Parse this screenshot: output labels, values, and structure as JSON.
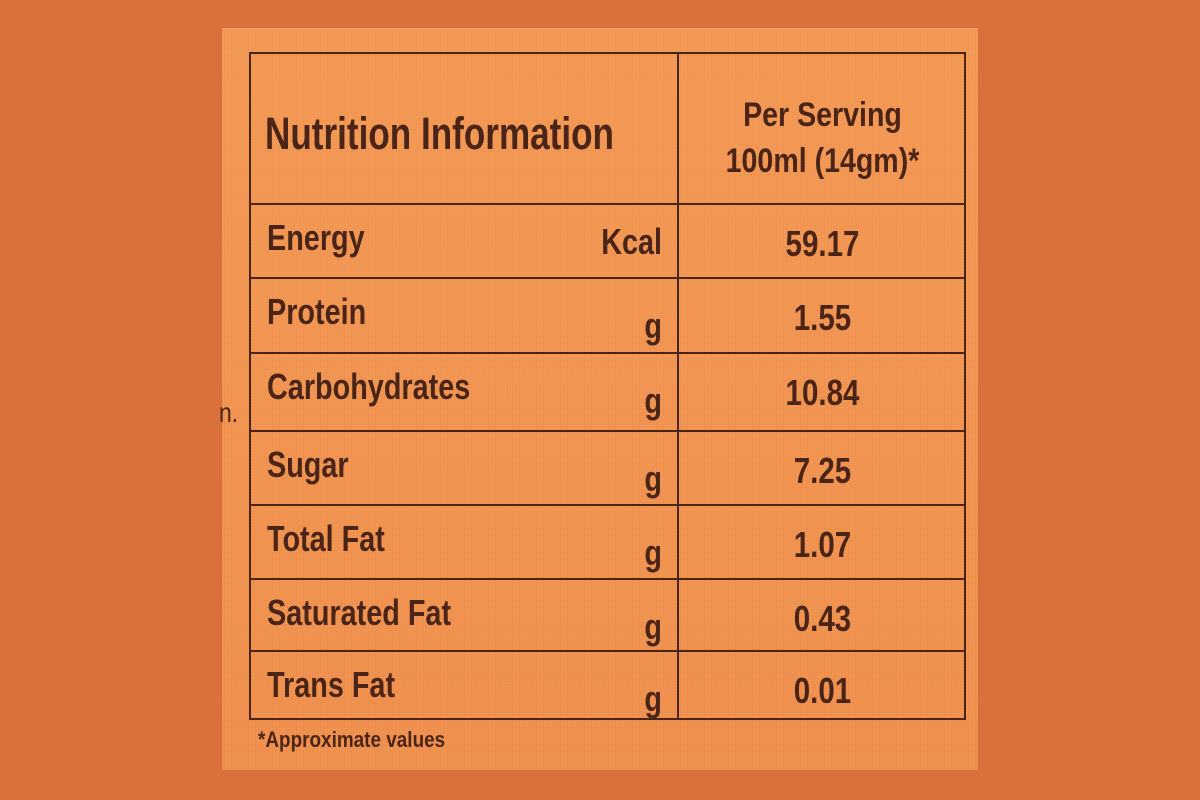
{
  "left_edge_text": "n.",
  "table": {
    "title": "Nutrition Information",
    "serving_line1": "Per Serving",
    "serving_line2": "100ml (14gm)*",
    "rows": [
      {
        "name": "Energy",
        "unit": "Kcal",
        "value": "59.17"
      },
      {
        "name": "Protein",
        "unit": "g",
        "value": "1.55"
      },
      {
        "name": "Carbohydrates",
        "unit": "g",
        "value": "10.84"
      },
      {
        "name": "Sugar",
        "unit": "g",
        "value": "7.25"
      },
      {
        "name": "Total Fat",
        "unit": "g",
        "value": "1.07"
      },
      {
        "name": "Saturated Fat",
        "unit": "g",
        "value": "0.43"
      },
      {
        "name": "Trans Fat",
        "unit": "g",
        "value": "0.01"
      }
    ]
  },
  "footnote": "*Approximate values",
  "colors": {
    "background": "#d96f3b",
    "label": "#f0924f",
    "ink": "#4a2417"
  }
}
